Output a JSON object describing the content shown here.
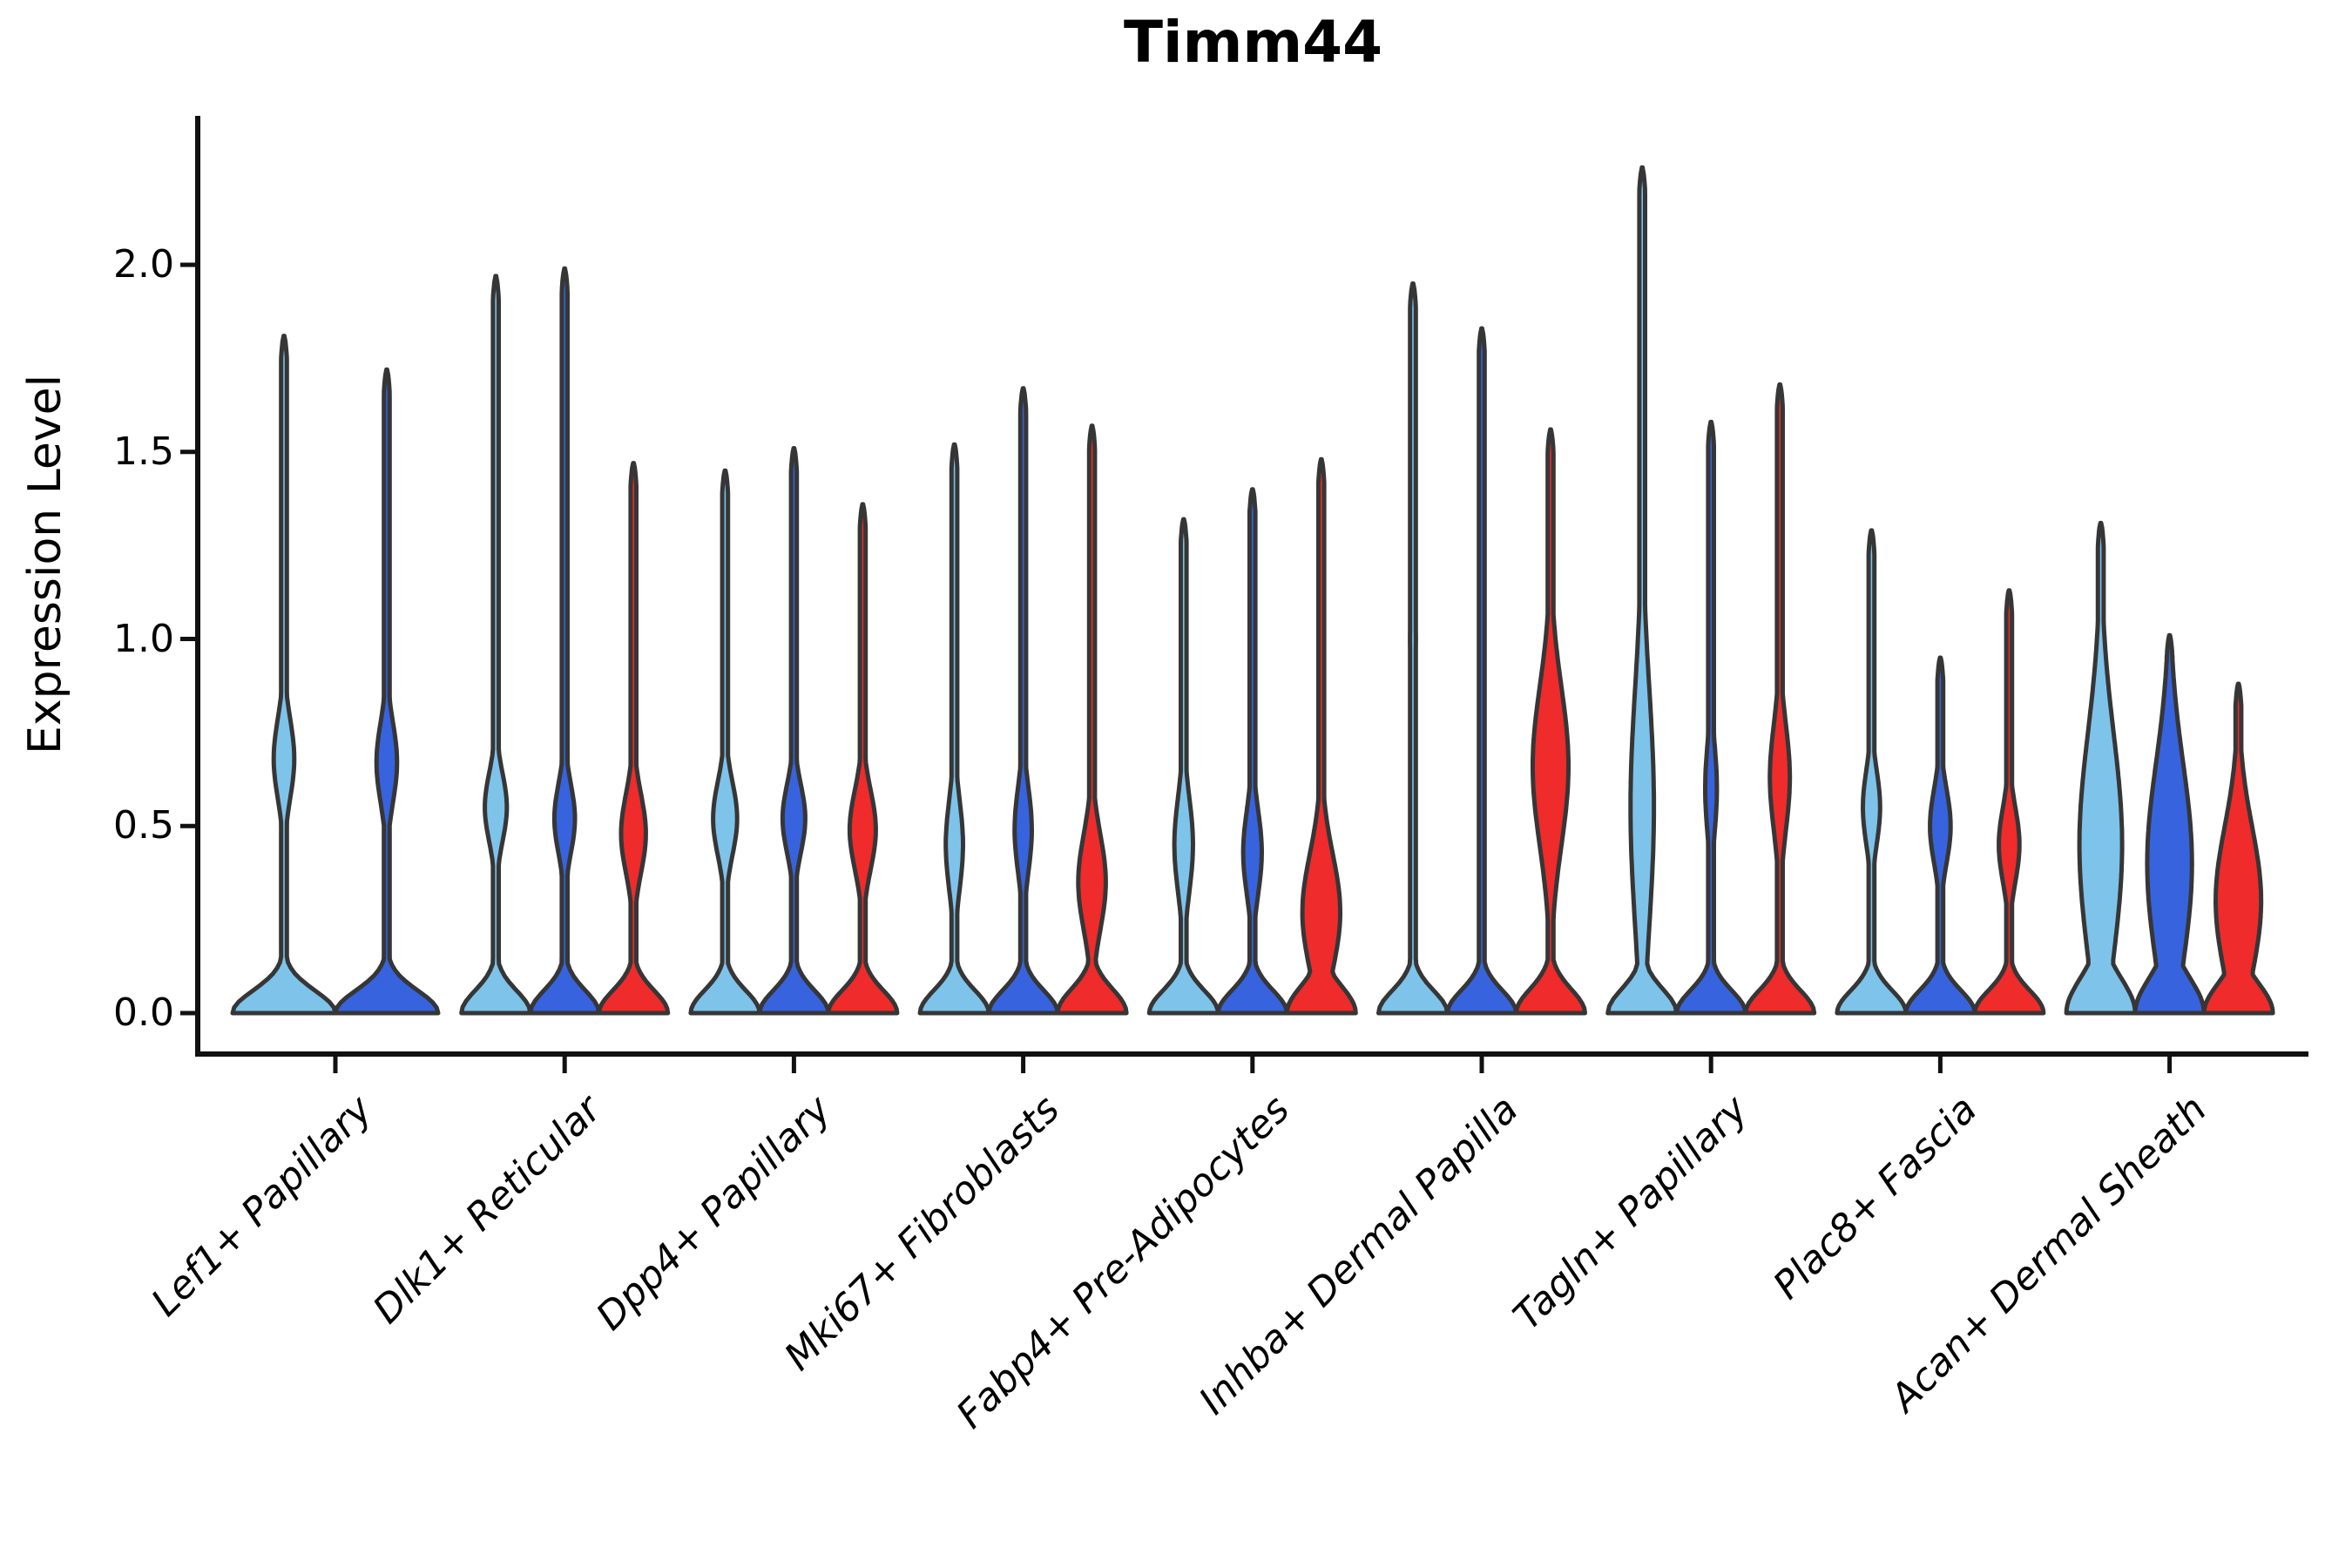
{
  "title": "Timm44",
  "y_axis": {
    "label": "Expression Level",
    "ticks": [
      "0.0",
      "0.5",
      "1.0",
      "1.5",
      "2.0"
    ],
    "tick_values": [
      0.0,
      0.5,
      1.0,
      1.5,
      2.0
    ]
  },
  "chart_data": {
    "type": "violin",
    "title": "Timm44",
    "ylabel": "Expression Level",
    "ylim": [
      -0.11,
      2.4
    ],
    "grid": false,
    "legend": false,
    "categories": [
      "Lef1+ Papillary",
      "Dlk1+ Reticular",
      "Dpp4+ Papillary",
      "Mki67+ Fibroblasts",
      "Fabp4+ Pre-Adipocytes",
      "Inhba+ Dermal Papilla",
      "Tagln+ Papillary",
      "Plac8+ Fascia",
      "Acan+ Dermal Sheath"
    ],
    "series_colors": {
      "light_blue": "#7EC3EA",
      "dark_blue": "#3763DE",
      "red": "#EF2B2B"
    },
    "outline_color": "#363636",
    "axis_color": "#111111",
    "groups": [
      {
        "violins": [
          {
            "series": "light_blue",
            "max": 1.81,
            "mode": 0.68,
            "mode_sigma": 0.15,
            "mode_halfwidth": 0.2,
            "base_sigma": 0.085
          },
          {
            "series": "dark_blue",
            "max": 1.72,
            "mode": 0.67,
            "mode_sigma": 0.15,
            "mode_halfwidth": 0.2,
            "base_sigma": 0.085
          }
        ]
      },
      {
        "violins": [
          {
            "series": "light_blue",
            "max": 1.97,
            "mode": 0.55,
            "mode_sigma": 0.13,
            "mode_halfwidth": 0.32,
            "base_sigma": 0.085
          },
          {
            "series": "dark_blue",
            "max": 1.99,
            "mode": 0.52,
            "mode_sigma": 0.13,
            "mode_halfwidth": 0.3,
            "base_sigma": 0.085
          },
          {
            "series": "red",
            "max": 1.47,
            "mode": 0.48,
            "mode_sigma": 0.15,
            "mode_halfwidth": 0.36,
            "base_sigma": 0.085
          }
        ]
      },
      {
        "violins": [
          {
            "series": "light_blue",
            "max": 1.45,
            "mode": 0.52,
            "mode_sigma": 0.14,
            "mode_halfwidth": 0.35,
            "base_sigma": 0.085
          },
          {
            "series": "dark_blue",
            "max": 1.51,
            "mode": 0.52,
            "mode_sigma": 0.13,
            "mode_halfwidth": 0.33,
            "base_sigma": 0.085
          },
          {
            "series": "red",
            "max": 1.36,
            "mode": 0.49,
            "mode_sigma": 0.15,
            "mode_halfwidth": 0.38,
            "base_sigma": 0.085
          }
        ]
      },
      {
        "violins": [
          {
            "series": "light_blue",
            "max": 1.52,
            "mode": 0.45,
            "mode_sigma": 0.17,
            "mode_halfwidth": 0.25,
            "base_sigma": 0.085
          },
          {
            "series": "dark_blue",
            "max": 1.67,
            "mode": 0.49,
            "mode_sigma": 0.16,
            "mode_halfwidth": 0.25,
            "base_sigma": 0.085
          },
          {
            "series": "red",
            "max": 1.57,
            "mode": 0.35,
            "mode_sigma": 0.18,
            "mode_halfwidth": 0.4,
            "base_sigma": 0.09
          }
        ]
      },
      {
        "violins": [
          {
            "series": "light_blue",
            "max": 1.32,
            "mode": 0.45,
            "mode_sigma": 0.18,
            "mode_halfwidth": 0.27,
            "base_sigma": 0.085
          },
          {
            "series": "dark_blue",
            "max": 1.4,
            "mode": 0.43,
            "mode_sigma": 0.16,
            "mode_halfwidth": 0.27,
            "base_sigma": 0.085
          },
          {
            "series": "red",
            "max": 1.48,
            "mode": 0.27,
            "mode_sigma": 0.22,
            "mode_halfwidth": 0.55,
            "base_sigma": 0.1
          }
        ]
      },
      {
        "violins": [
          {
            "series": "light_blue",
            "max": 1.95,
            "mode": 1.0,
            "mode_sigma": 0.22,
            "mode_halfwidth": 0.085,
            "base_sigma": 0.085
          },
          {
            "series": "dark_blue",
            "max": 1.83,
            "mode": 0.95,
            "mode_sigma": 0.18,
            "mode_halfwidth": 0.075,
            "base_sigma": 0.085
          },
          {
            "series": "red",
            "max": 1.56,
            "mode": 0.66,
            "mode_sigma": 0.3,
            "mode_halfwidth": 0.52,
            "base_sigma": 0.09
          }
        ]
      },
      {
        "violins": [
          {
            "series": "light_blue",
            "max": 2.26,
            "mode": 0.55,
            "mode_sigma": 0.45,
            "mode_halfwidth": 0.34,
            "base_sigma": 0.09
          },
          {
            "series": "dark_blue",
            "max": 1.58,
            "mode": 0.6,
            "mode_sigma": 0.17,
            "mode_halfwidth": 0.17,
            "base_sigma": 0.085
          },
          {
            "series": "red",
            "max": 1.68,
            "mode": 0.63,
            "mode_sigma": 0.2,
            "mode_halfwidth": 0.29,
            "base_sigma": 0.085
          }
        ]
      },
      {
        "violins": [
          {
            "series": "light_blue",
            "max": 1.29,
            "mode": 0.55,
            "mode_sigma": 0.14,
            "mode_halfwidth": 0.25,
            "base_sigma": 0.085
          },
          {
            "series": "dark_blue",
            "max": 0.95,
            "mode": 0.5,
            "mode_sigma": 0.14,
            "mode_halfwidth": 0.3,
            "base_sigma": 0.085
          },
          {
            "series": "red",
            "max": 1.13,
            "mode": 0.45,
            "mode_sigma": 0.14,
            "mode_halfwidth": 0.3,
            "base_sigma": 0.085
          }
        ]
      },
      {
        "violins": [
          {
            "series": "light_blue",
            "max": 1.31,
            "mode": 0.45,
            "mode_sigma": 0.42,
            "mode_halfwidth": 0.62,
            "base_sigma": 0.13
          },
          {
            "series": "dark_blue",
            "max": 1.01,
            "mode": 0.4,
            "mode_sigma": 0.38,
            "mode_halfwidth": 0.65,
            "base_sigma": 0.13
          },
          {
            "series": "red",
            "max": 0.88,
            "mode": 0.3,
            "mode_sigma": 0.28,
            "mode_halfwidth": 0.66,
            "base_sigma": 0.11
          }
        ]
      }
    ]
  }
}
